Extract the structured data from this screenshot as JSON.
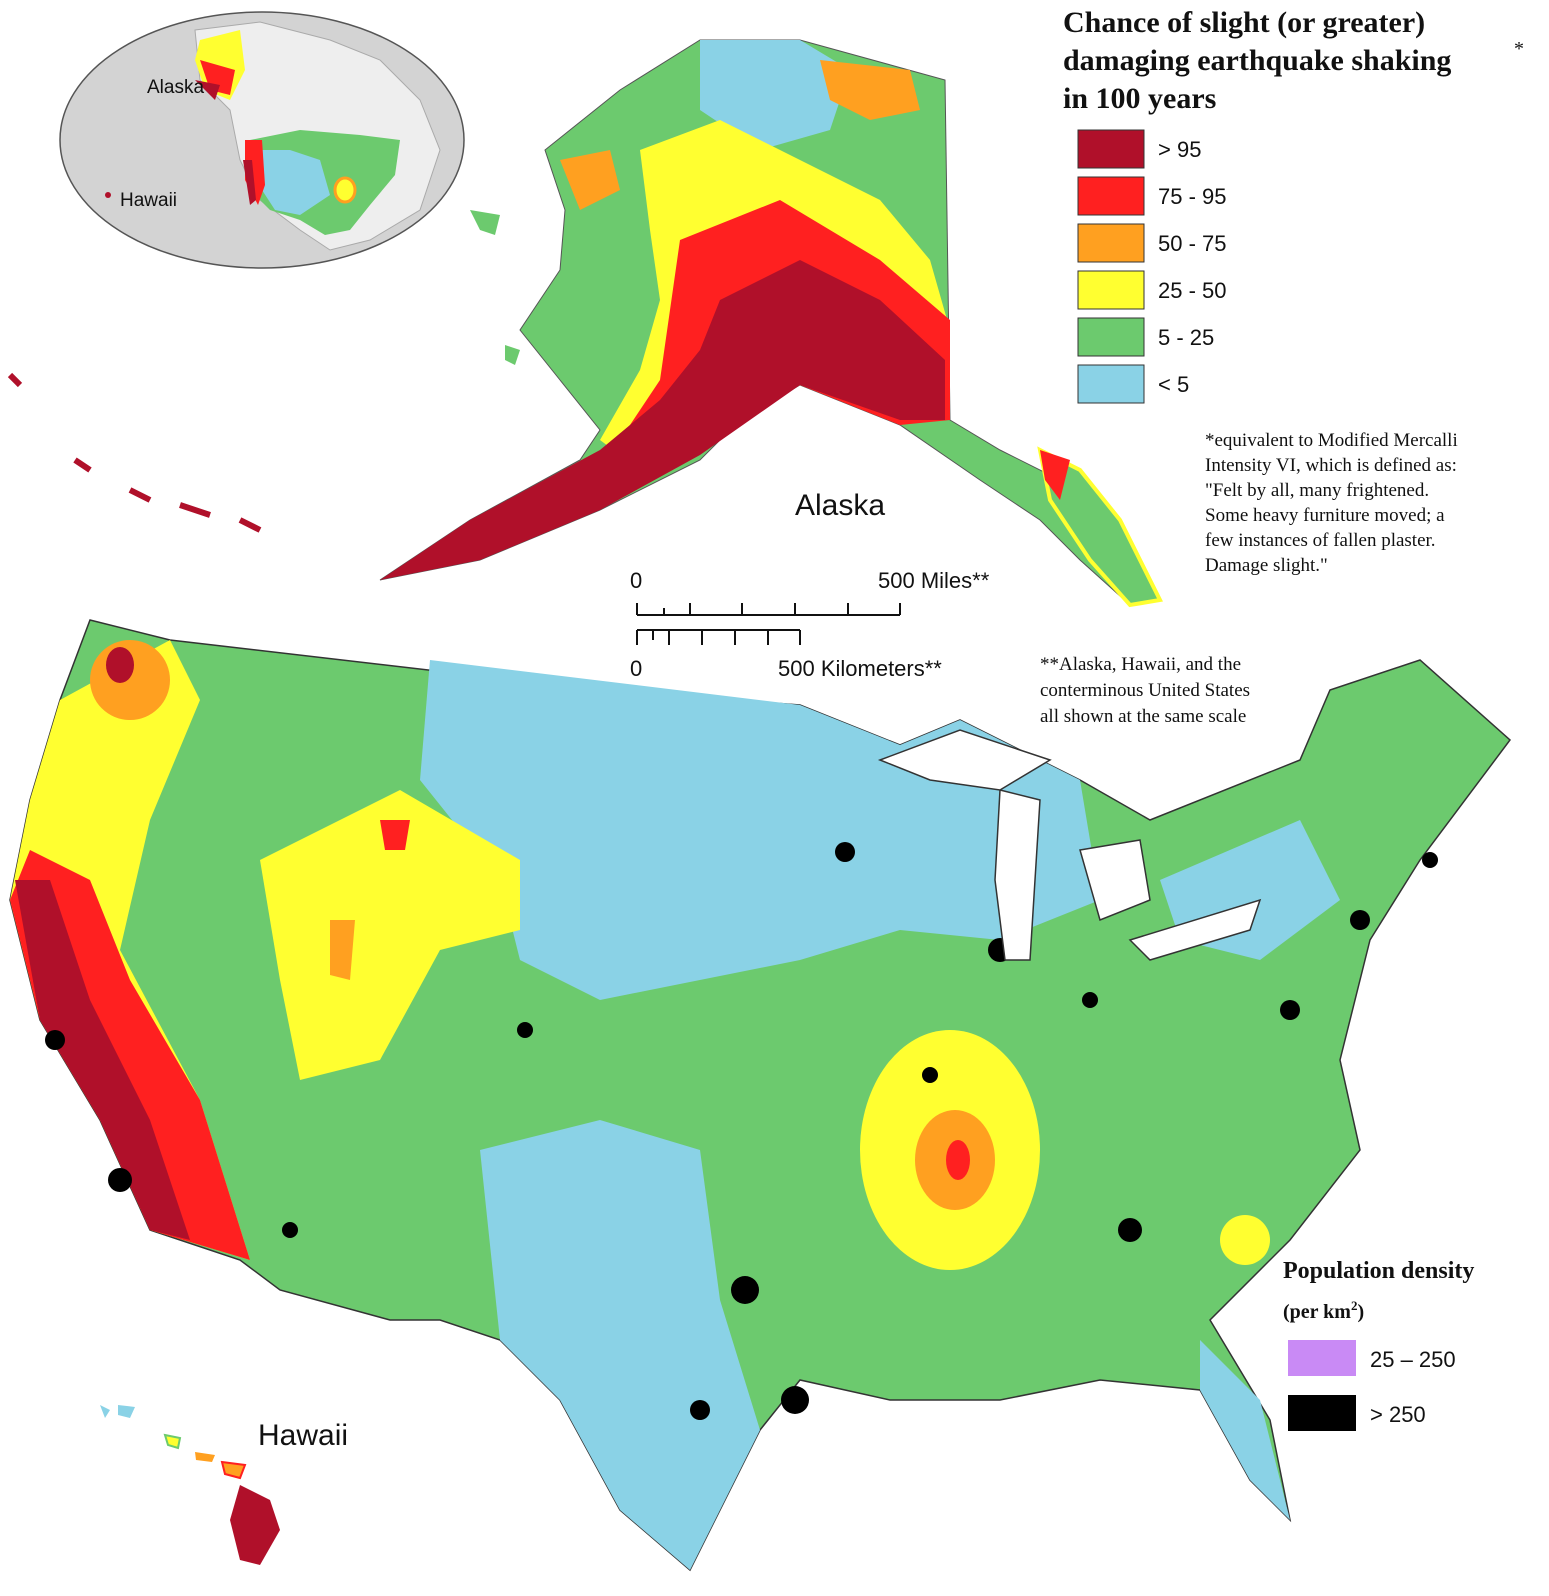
{
  "title": {
    "lines": [
      "Chance of slight (or greater)",
      "damaging earthquake shaking",
      "in 100 years"
    ],
    "mark": "*"
  },
  "hazard_legend": [
    {
      "label": "> 95",
      "color": "#b0102a"
    },
    {
      "label": "75 - 95",
      "color": "#ff2020"
    },
    {
      "label": "50 - 75",
      "color": "#ffa020"
    },
    {
      "label": "25 - 50",
      "color": "#ffff30"
    },
    {
      "label": "5 - 25",
      "color": "#6cca6e"
    },
    {
      "label": "< 5",
      "color": "#8ad2e6"
    }
  ],
  "footnote_1": [
    "*equivalent to Modified Mercalli",
    "Intensity VI, which is defined as:",
    "\"Felt by all, many frightened.",
    "Some heavy furniture moved; a",
    "few instances of fallen plaster.",
    "Damage slight.\""
  ],
  "footnote_2": [
    "**Alaska, Hawaii, and the",
    "conterminous United States",
    "all shown at the same scale"
  ],
  "scale_bar": {
    "miles": {
      "start": "0",
      "end": "500 Miles**"
    },
    "kilometers": {
      "start": "0",
      "end": "500 Kilometers**"
    }
  },
  "map_labels": {
    "alaska": "Alaska",
    "hawaii": "Hawaii"
  },
  "inset_labels": {
    "alaska": "Alaska",
    "hawaii": "Hawaii"
  },
  "population_legend": {
    "title": "Population density",
    "unit": {
      "prefix": "(per km",
      "superscript": "2",
      "suffix": ")"
    },
    "items": [
      {
        "label": "25 – 250",
        "color": "#c98af5"
      },
      {
        "label": "> 250",
        "color": "#000000"
      }
    ]
  }
}
